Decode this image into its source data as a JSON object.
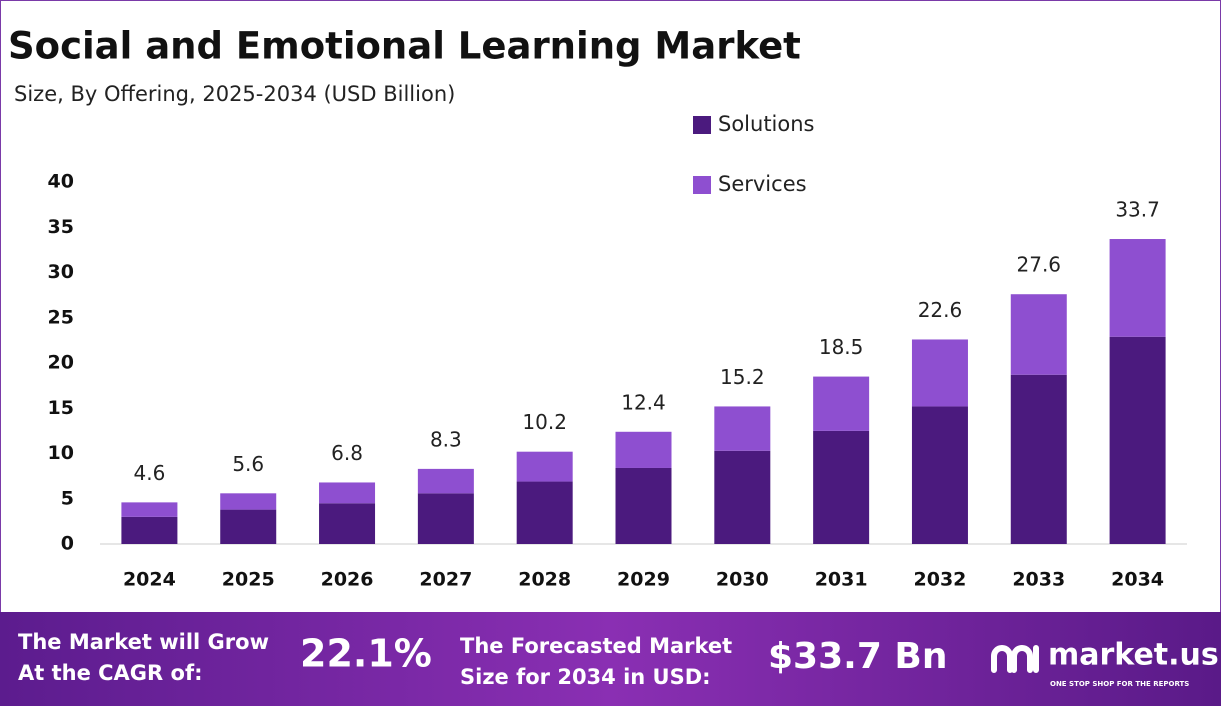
{
  "chart_data": {
    "type": "stacked-bar",
    "title": "Social and Emotional Learning Market",
    "subtitle": "Size, By Offering, 2025-2034 (USD Billion)",
    "categories": [
      "2024",
      "2025",
      "2026",
      "2027",
      "2028",
      "2029",
      "2030",
      "2031",
      "2032",
      "2033",
      "2034"
    ],
    "series": [
      {
        "name": "Solutions",
        "color": "#4b1a7e",
        "values": [
          3.0,
          3.8,
          4.5,
          5.6,
          6.9,
          8.4,
          10.3,
          12.5,
          15.2,
          18.7,
          22.9
        ]
      },
      {
        "name": "Services",
        "color": "#8e4fd0",
        "values": [
          1.6,
          1.8,
          2.3,
          2.7,
          3.3,
          4.0,
          4.9,
          6.0,
          7.4,
          8.9,
          10.8
        ]
      }
    ],
    "totals": [
      4.6,
      5.6,
      6.8,
      8.3,
      10.2,
      12.4,
      15.2,
      18.5,
      22.6,
      27.6,
      33.7
    ],
    "ylim": [
      0,
      40
    ],
    "yticks": [
      0,
      5,
      10,
      15,
      20,
      25,
      30,
      35,
      40
    ],
    "grid": false
  },
  "footer": {
    "cagr_text": [
      "The Market will Grow",
      "At the CAGR of:"
    ],
    "cagr_value": "22.1%",
    "forecast_text": [
      "The Forecasted Market",
      "Size for 2034 in USD:"
    ],
    "forecast_value": "$33.7 Bn",
    "brand": "market.us",
    "tagline": "ONE STOP SHOP FOR THE REPORTS"
  }
}
